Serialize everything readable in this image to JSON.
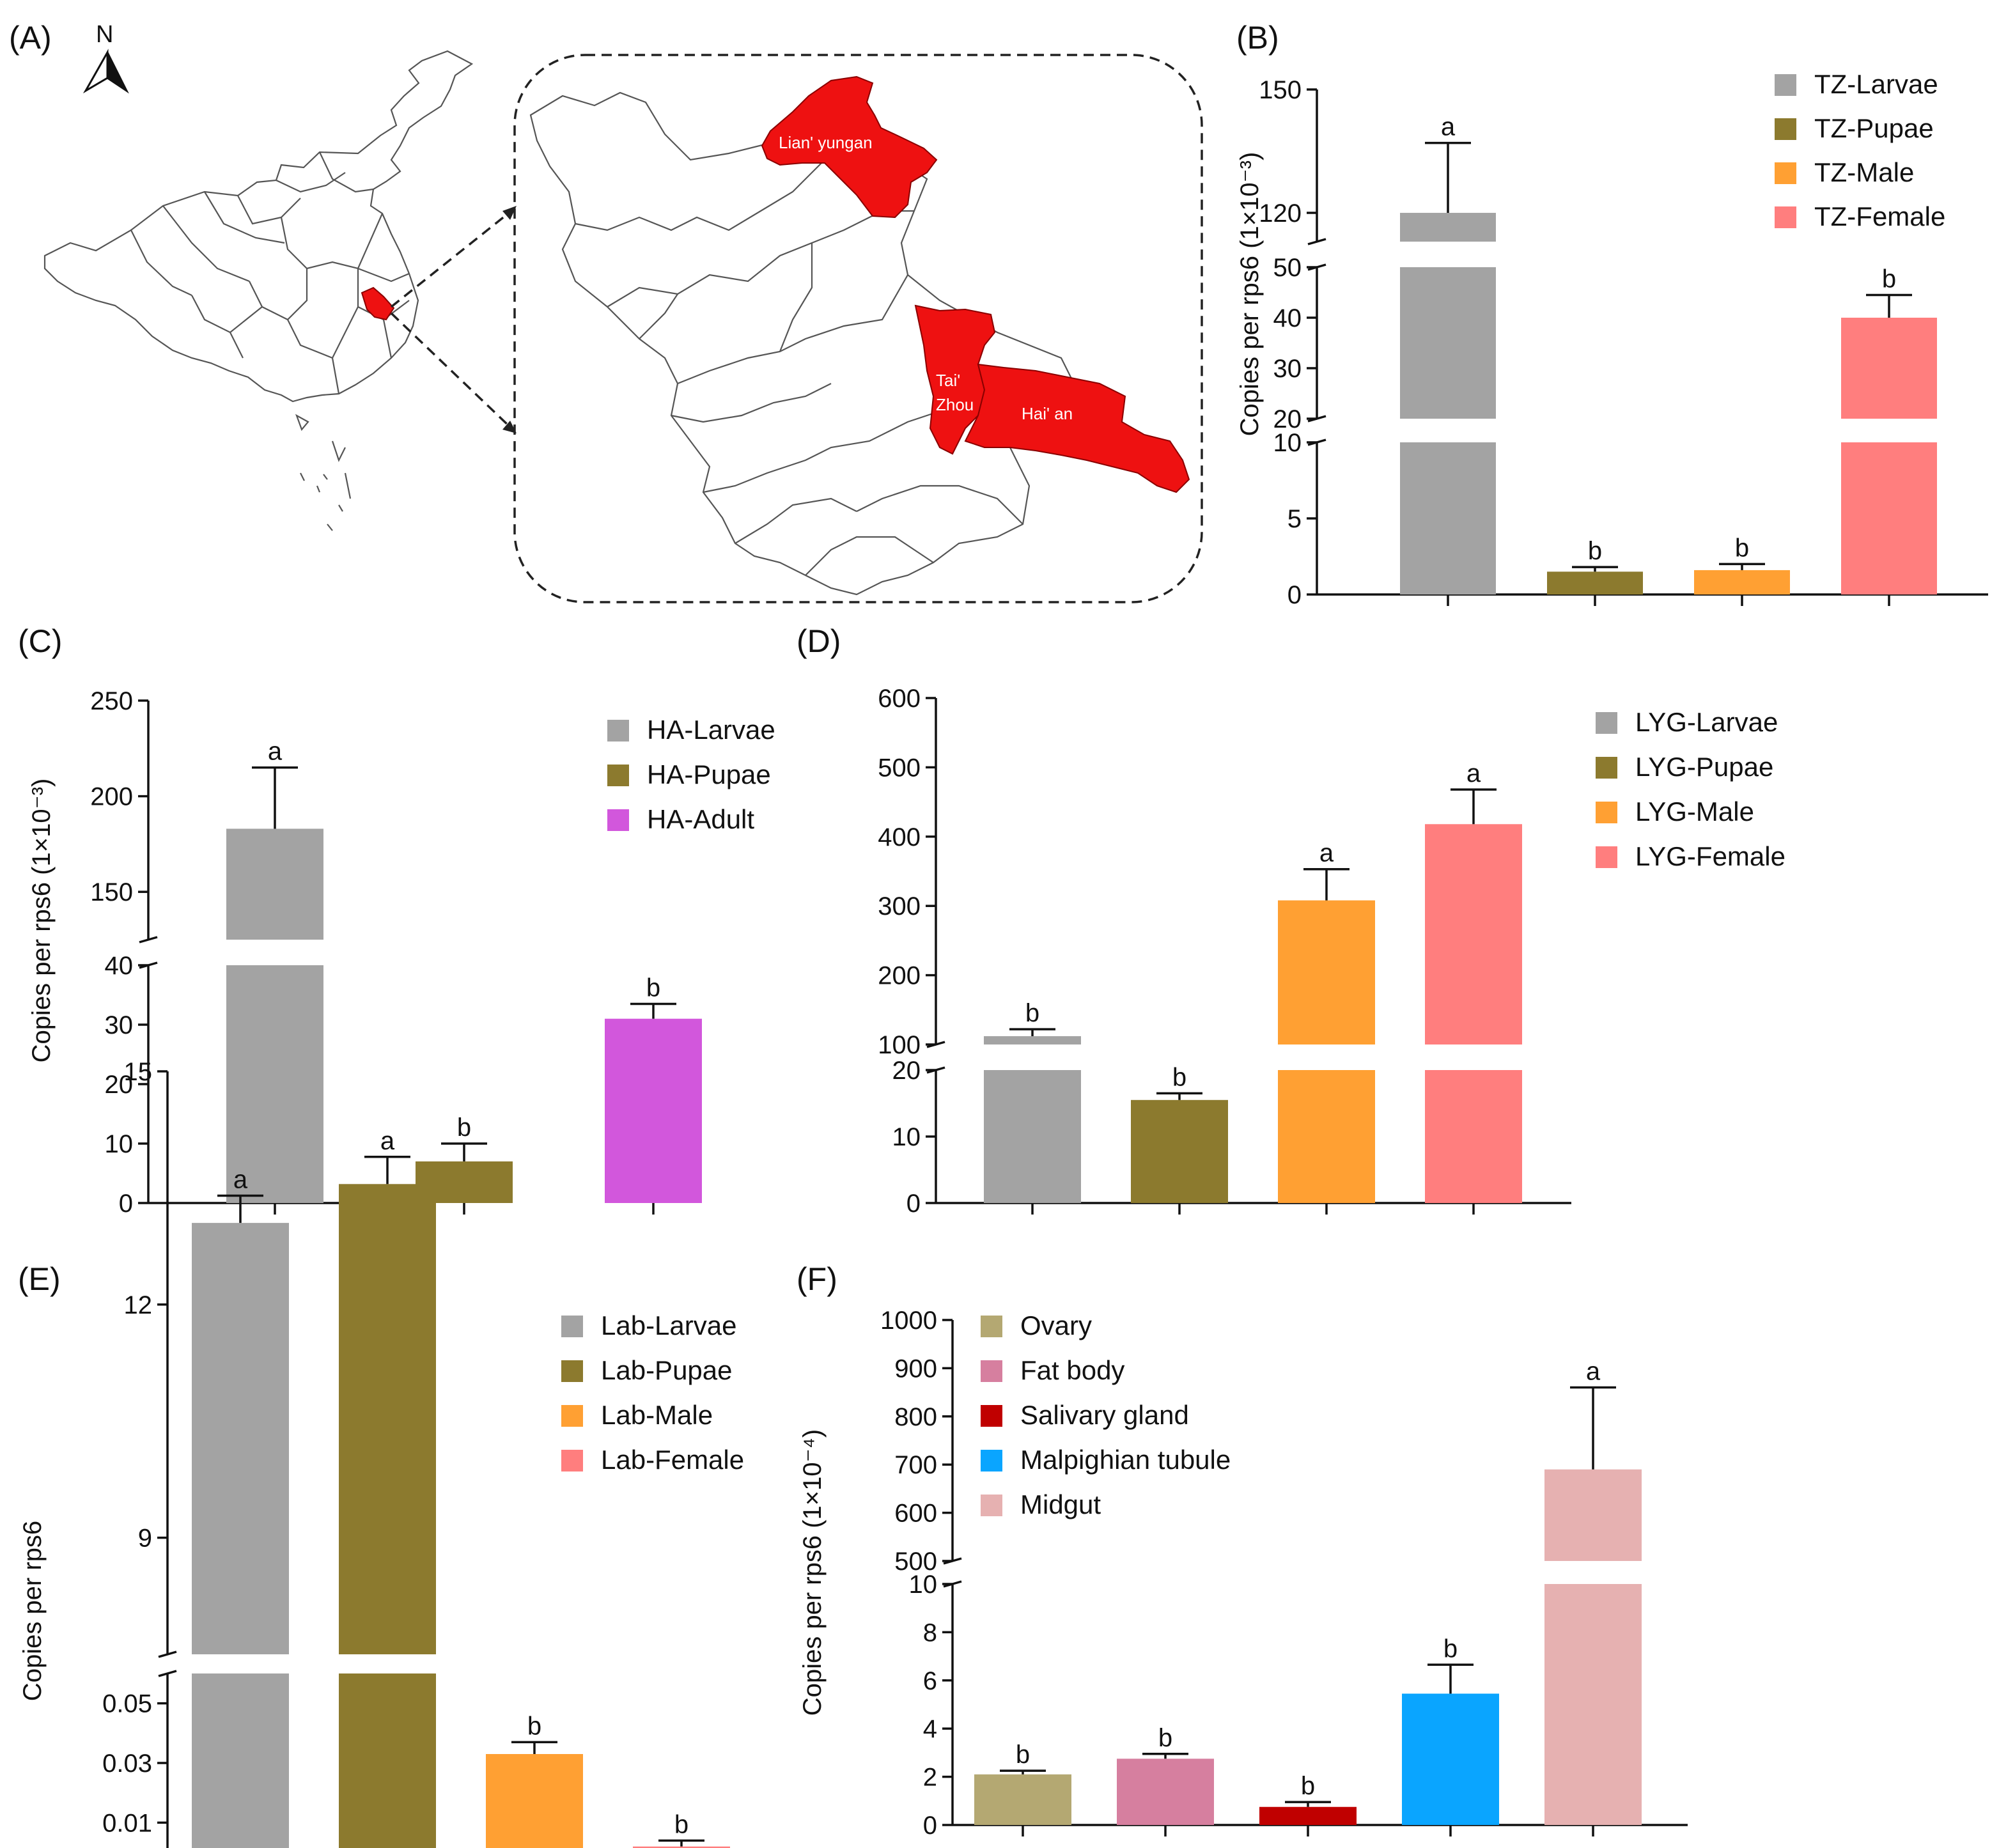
{
  "figure": {
    "panel_labels": {
      "a": "(A)",
      "b": "(B)",
      "c": "(C)",
      "d": "(D)",
      "e": "(E)",
      "f": "(F)"
    }
  },
  "map": {
    "compass_label": "N",
    "cities": {
      "lianyungang": "Lian' yungan",
      "taizhou_1": "Tai'",
      "taizhou_2": "Zhou",
      "haian": "Hai' an"
    },
    "highlight_color": "#ee1111"
  },
  "chart_data": [
    {
      "panel": "B",
      "type": "bar",
      "ylabel": "Copies per rps6 (1×10⁻³)",
      "y_axis_break": true,
      "segments": [
        {
          "range": [
            0,
            10
          ],
          "ticks": [
            0,
            5,
            10
          ]
        },
        {
          "range": [
            20,
            50
          ],
          "ticks": [
            20,
            30,
            40,
            50
          ]
        },
        {
          "range": [
            113,
            150
          ],
          "ticks": [
            120,
            150
          ]
        }
      ],
      "categories": [
        "TZ-Larvae",
        "TZ-Pupae",
        "TZ-Male",
        "TZ-Female"
      ],
      "values": [
        120,
        1.5,
        1.6,
        40
      ],
      "errors": [
        17,
        0.3,
        0.4,
        4.5
      ],
      "significance": [
        "a",
        "b",
        "b",
        "b"
      ],
      "colors": [
        "#a3a3a3",
        "#8c7a2e",
        "#ffa033",
        "#ff7e7e"
      ],
      "legend": [
        "TZ-Larvae",
        "TZ-Pupae",
        "TZ-Male",
        "TZ-Female"
      ]
    },
    {
      "panel": "C",
      "type": "bar",
      "ylabel": "Copies per rps6 (1×10⁻³)",
      "y_axis_break": true,
      "segments": [
        {
          "range": [
            0,
            40
          ],
          "ticks": [
            0,
            10,
            20,
            30,
            40
          ]
        },
        {
          "range": [
            125,
            250
          ],
          "ticks": [
            150,
            200,
            250
          ]
        }
      ],
      "categories": [
        "HA-Larvae",
        "HA-Pupae",
        "HA-Adult"
      ],
      "values": [
        183,
        7,
        31
      ],
      "errors": [
        32,
        3,
        2.5
      ],
      "significance": [
        "a",
        "b",
        "b"
      ],
      "colors": [
        "#a3a3a3",
        "#8c7a2e",
        "#d257dc"
      ],
      "legend": [
        "HA-Larvae",
        "HA-Pupae",
        "HA-Adult"
      ]
    },
    {
      "panel": "D",
      "type": "bar",
      "ylabel": "",
      "y_axis_break": true,
      "segments": [
        {
          "range": [
            0,
            20
          ],
          "ticks": [
            0,
            10,
            20
          ]
        },
        {
          "range": [
            100,
            600
          ],
          "ticks": [
            100,
            200,
            300,
            400,
            500,
            600
          ]
        }
      ],
      "categories": [
        "LYG-Larvae",
        "LYG-Pupae",
        "LYG-Male",
        "LYG-Female"
      ],
      "values": [
        112,
        15.5,
        308,
        418
      ],
      "errors": [
        10,
        1,
        45,
        50
      ],
      "significance": [
        "b",
        "b",
        "a",
        "a"
      ],
      "colors": [
        "#a3a3a3",
        "#8c7a2e",
        "#ffa033",
        "#ff7e7e"
      ],
      "legend": [
        "LYG-Larvae",
        "LYG-Pupae",
        "LYG-Male",
        "LYG-Female"
      ]
    },
    {
      "panel": "E",
      "type": "bar",
      "ylabel": "Copies per rps6",
      "y_axis_break": true,
      "segments": [
        {
          "range": [
            0,
            0.06
          ],
          "ticks": [
            0.01,
            0.03,
            0.05
          ]
        },
        {
          "range": [
            7.5,
            15
          ],
          "ticks": [
            9,
            12,
            15
          ]
        }
      ],
      "tick_labels": {
        "0.01": "0.01",
        "0.03": "0.03",
        "0.05": "0.05",
        "9": "9",
        "12": "12",
        "15": "15"
      },
      "categories": [
        "Lab-Larvae",
        "Lab-Pupae",
        "Lab-Male",
        "Lab-Female"
      ],
      "values": [
        13.05,
        13.55,
        0.033,
        0.002
      ],
      "errors": [
        0.35,
        0.35,
        0.004,
        0.002
      ],
      "significance": [
        "a",
        "a",
        "b",
        "b"
      ],
      "colors": [
        "#a3a3a3",
        "#8c7a2e",
        "#ffa033",
        "#ff7e7e"
      ],
      "legend": [
        "Lab-Larvae",
        "Lab-Pupae",
        "Lab-Male",
        "Lab-Female"
      ]
    },
    {
      "panel": "F",
      "type": "bar",
      "ylabel": "Copies per rps6 (1×10⁻⁴)",
      "y_axis_break": true,
      "segments": [
        {
          "range": [
            0,
            10
          ],
          "ticks": [
            0,
            2,
            4,
            6,
            8,
            10
          ]
        },
        {
          "range": [
            500,
            1000
          ],
          "ticks": [
            500,
            600,
            700,
            800,
            900,
            1000
          ]
        }
      ],
      "categories": [
        "Ovary",
        "Fat body",
        "Salivary gland",
        "Malpighian tubule",
        "Midgut"
      ],
      "values": [
        2.1,
        2.75,
        0.75,
        5.45,
        690
      ],
      "errors": [
        0.15,
        0.2,
        0.2,
        1.2,
        170
      ],
      "significance": [
        "b",
        "b",
        "b",
        "b",
        "a"
      ],
      "colors": [
        "#b4a872",
        "#d67f9f",
        "#c00000",
        "#0aa5ff",
        "#e6b1b1"
      ],
      "legend": [
        "Ovary",
        "Fat body",
        "Salivary gland",
        "Malpighian tubule",
        "Midgut"
      ]
    }
  ]
}
